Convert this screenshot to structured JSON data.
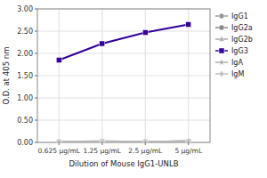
{
  "chart_data": {
    "type": "line",
    "categories": [
      "0.625 μg/mL",
      "1.25 μg/mL",
      "2.5 μg/mL",
      "5 μg/mL"
    ],
    "series": [
      {
        "name": "IgG1",
        "color": "#999999",
        "marker": "circle",
        "values": [
          0.02,
          0.02,
          0.02,
          0.03
        ]
      },
      {
        "name": "IgG2a",
        "color": "#888888",
        "marker": "circle",
        "values": [
          0.02,
          0.03,
          0.02,
          0.03
        ]
      },
      {
        "name": "IgG2b",
        "color": "#aaaaaa",
        "marker": "triangle",
        "values": [
          0.02,
          0.02,
          0.02,
          0.03
        ]
      },
      {
        "name": "IgG3",
        "color": "#330099",
        "marker": "square",
        "values": [
          1.85,
          2.22,
          2.47,
          2.65
        ]
      },
      {
        "name": "IgA",
        "color": "#aaaaaa",
        "marker": "star",
        "values": [
          0.02,
          0.02,
          0.02,
          0.03
        ]
      },
      {
        "name": "IgM",
        "color": "#bbbbbb",
        "marker": "plus",
        "values": [
          0.02,
          0.02,
          0.02,
          0.03
        ]
      }
    ],
    "xlabel": "Dilution of Mouse IgG1-UNLB",
    "ylabel": "O.D. at 405 nm",
    "ylim": [
      0.0,
      3.0
    ],
    "yticks": [
      {
        "value": 0.0,
        "label": "0.00"
      },
      {
        "value": 0.5,
        "label": "0.50"
      },
      {
        "value": 1.0,
        "label": "1.00"
      },
      {
        "value": 1.5,
        "label": "1.50"
      },
      {
        "value": 2.0,
        "label": "2.00"
      },
      {
        "value": 2.5,
        "label": "2.50"
      },
      {
        "value": 3.0,
        "label": "3.00"
      }
    ],
    "grid": true,
    "legend": "right"
  }
}
